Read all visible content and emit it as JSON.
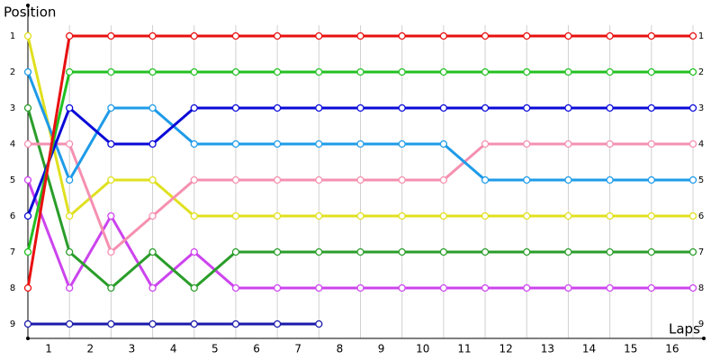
{
  "chart_data": {
    "type": "line",
    "title": "Position",
    "x_label": "Laps",
    "x": [
      0,
      1,
      2,
      3,
      4,
      5,
      6,
      7,
      8,
      9,
      10,
      11,
      12,
      13,
      14,
      15,
      16
    ],
    "xlim": [
      0,
      16
    ],
    "xticks": [
      {
        "value": 0.5,
        "label": "1"
      },
      {
        "value": 1.5,
        "label": "2"
      },
      {
        "value": 2.5,
        "label": "3"
      },
      {
        "value": 3.5,
        "label": "4"
      },
      {
        "value": 4.5,
        "label": "5"
      },
      {
        "value": 5.5,
        "label": "6"
      },
      {
        "value": 6.5,
        "label": "7"
      },
      {
        "value": 7.5,
        "label": "8"
      },
      {
        "value": 8.5,
        "label": "9"
      },
      {
        "value": 9.5,
        "label": "10"
      },
      {
        "value": 10.5,
        "label": "11"
      },
      {
        "value": 11.5,
        "label": "12"
      },
      {
        "value": 12.5,
        "label": "13"
      },
      {
        "value": 13.5,
        "label": "14"
      },
      {
        "value": 14.5,
        "label": "15"
      },
      {
        "value": 15.5,
        "label": "16"
      }
    ],
    "ylim": [
      9.4,
      0.2
    ],
    "yticks": [
      1,
      2,
      3,
      4,
      5,
      6,
      7,
      8,
      9
    ],
    "grid": true,
    "series": [
      {
        "color": "#1a1aaa",
        "values": [
          9,
          9,
          9,
          9,
          9,
          9,
          9,
          9,
          null,
          null,
          null,
          null,
          null,
          null,
          null,
          null,
          null
        ]
      },
      {
        "color": "#cc44ee",
        "values": [
          5,
          8,
          6,
          8,
          7,
          8,
          8,
          8,
          8,
          8,
          8,
          8,
          8,
          8,
          8,
          8,
          8
        ]
      },
      {
        "color": "#2a9d2a",
        "values": [
          3,
          7,
          8,
          7,
          8,
          7,
          7,
          7,
          7,
          7,
          7,
          7,
          7,
          7,
          7,
          7,
          7
        ]
      },
      {
        "color": "#e0e020",
        "values": [
          1,
          6,
          5,
          5,
          6,
          6,
          6,
          6,
          6,
          6,
          6,
          6,
          6,
          6,
          6,
          6,
          6
        ]
      },
      {
        "color": "#f590b0",
        "values": [
          4,
          4,
          7,
          6,
          5,
          5,
          5,
          5,
          5,
          5,
          5,
          4,
          4,
          4,
          4,
          4,
          4
        ]
      },
      {
        "color": "#1e9be8",
        "values": [
          2,
          5,
          3,
          3,
          4,
          4,
          4,
          4,
          4,
          4,
          4,
          5,
          5,
          5,
          5,
          5,
          5
        ]
      },
      {
        "color": "#0a0ad8",
        "values": [
          6,
          3,
          4,
          4,
          3,
          3,
          3,
          3,
          3,
          3,
          3,
          3,
          3,
          3,
          3,
          3,
          3
        ]
      },
      {
        "color": "#22c022",
        "values": [
          7,
          2,
          2,
          2,
          2,
          2,
          2,
          2,
          2,
          2,
          2,
          2,
          2,
          2,
          2,
          2,
          2
        ]
      },
      {
        "color": "#e81010",
        "values": [
          8,
          1,
          1,
          1,
          1,
          1,
          1,
          1,
          1,
          1,
          1,
          1,
          1,
          1,
          1,
          1,
          1
        ]
      }
    ]
  }
}
